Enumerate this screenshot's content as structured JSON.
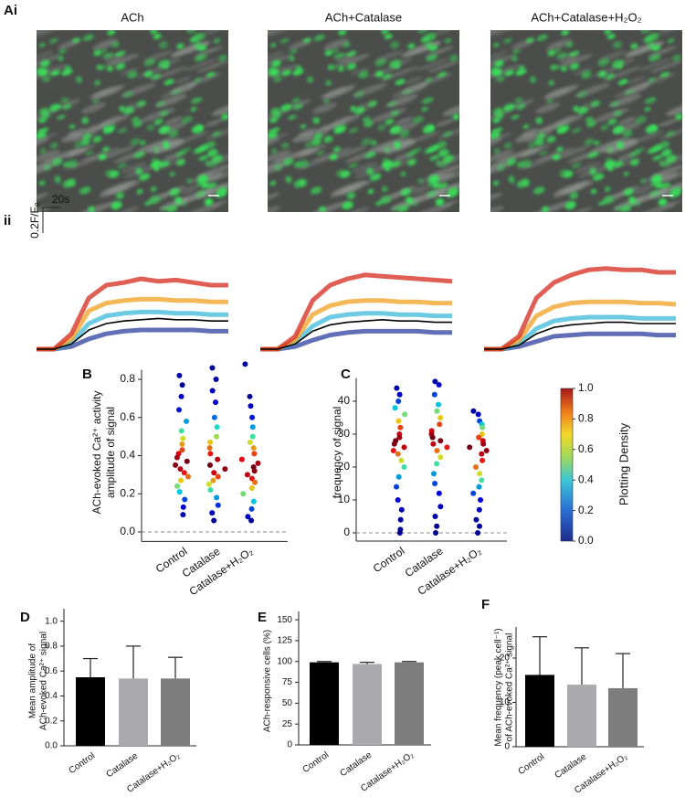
{
  "panel_labels": [
    "Ai",
    "ii"
  ],
  "images": [
    {
      "title": "ACh"
    },
    {
      "title": "ACh+Catalase"
    },
    {
      "title": "ACh+Catalase+H₂O₂"
    }
  ],
  "colorbar": {
    "label": "Plotting Density",
    "lim": [
      0,
      1
    ],
    "ticks": [
      {
        "value": 0,
        "label": "0.0"
      },
      {
        "value": 0.2,
        "label": "0.2"
      },
      {
        "value": 0.4,
        "label": "0.4"
      },
      {
        "value": 0.6,
        "label": "0.6"
      },
      {
        "value": 0.8,
        "label": "0.8"
      },
      {
        "value": 1,
        "label": "1.0"
      }
    ]
  },
  "chart_data": [
    {
      "type": "line",
      "x": [
        0,
        10,
        20,
        30,
        40,
        50,
        60,
        70,
        80,
        90,
        100,
        110
      ],
      "xlim": [
        0,
        110
      ],
      "ylim": [
        0,
        0.8
      ],
      "scalebar": {
        "x_value": 20,
        "x_label": "20s",
        "y_value": 0.2,
        "y_label": "0.2F/F₀"
      },
      "series": [
        {
          "color": "#2b3f9e",
          "values": [
            0,
            0,
            0.02,
            0.08,
            0.12,
            0.14,
            0.15,
            0.15,
            0.15,
            0.15,
            0.14,
            0.14
          ]
        },
        {
          "color": "#3bb8d8",
          "values": [
            0,
            0,
            0.05,
            0.2,
            0.26,
            0.28,
            0.29,
            0.29,
            0.28,
            0.28,
            0.27,
            0.27
          ]
        },
        {
          "color": "#f0a020",
          "values": [
            0,
            0,
            0.08,
            0.3,
            0.36,
            0.38,
            0.39,
            0.39,
            0.38,
            0.38,
            0.37,
            0.37
          ]
        },
        {
          "color": "#d42a1c",
          "values": [
            0,
            0,
            0.12,
            0.4,
            0.5,
            0.52,
            0.55,
            0.53,
            0.54,
            0.52,
            0.5,
            0.5
          ]
        },
        {
          "color": "#000000",
          "values": [
            0,
            0,
            0.04,
            0.15,
            0.2,
            0.22,
            0.23,
            0.24,
            0.23,
            0.23,
            0.22,
            0.22
          ]
        }
      ]
    },
    {
      "type": "line",
      "x": [
        0,
        10,
        20,
        30,
        40,
        50,
        60,
        70,
        80,
        90,
        100,
        110
      ],
      "xlim": [
        0,
        110
      ],
      "ylim": [
        0,
        0.8
      ],
      "series": [
        {
          "color": "#2b3f9e",
          "values": [
            0,
            0,
            0.02,
            0.07,
            0.11,
            0.13,
            0.14,
            0.14,
            0.14,
            0.14,
            0.13,
            0.13
          ]
        },
        {
          "color": "#3bb8d8",
          "values": [
            0,
            0,
            0.05,
            0.18,
            0.25,
            0.27,
            0.28,
            0.28,
            0.27,
            0.27,
            0.26,
            0.26
          ]
        },
        {
          "color": "#f0a020",
          "values": [
            0,
            0,
            0.07,
            0.27,
            0.34,
            0.37,
            0.38,
            0.38,
            0.37,
            0.37,
            0.36,
            0.36
          ]
        },
        {
          "color": "#d42a1c",
          "values": [
            0,
            0,
            0.1,
            0.38,
            0.5,
            0.55,
            0.58,
            0.57,
            0.56,
            0.55,
            0.54,
            0.53
          ]
        },
        {
          "color": "#000000",
          "values": [
            0,
            0,
            0.04,
            0.14,
            0.19,
            0.21,
            0.22,
            0.23,
            0.22,
            0.22,
            0.21,
            0.21
          ]
        }
      ]
    },
    {
      "type": "line",
      "x": [
        0,
        10,
        20,
        30,
        40,
        50,
        60,
        70,
        80,
        90,
        100,
        110
      ],
      "xlim": [
        0,
        110
      ],
      "ylim": [
        0,
        0.8
      ],
      "series": [
        {
          "color": "#2b3f9e",
          "values": [
            0,
            0,
            0.02,
            0.06,
            0.1,
            0.11,
            0.12,
            0.12,
            0.12,
            0.12,
            0.11,
            0.11
          ]
        },
        {
          "color": "#3bb8d8",
          "values": [
            0,
            0,
            0.04,
            0.16,
            0.22,
            0.24,
            0.25,
            0.25,
            0.25,
            0.24,
            0.24,
            0.24
          ]
        },
        {
          "color": "#f0a020",
          "values": [
            0,
            0,
            0.07,
            0.26,
            0.33,
            0.36,
            0.37,
            0.37,
            0.37,
            0.36,
            0.36,
            0.35
          ]
        },
        {
          "color": "#d42a1c",
          "values": [
            0,
            0,
            0.1,
            0.4,
            0.52,
            0.58,
            0.62,
            0.63,
            0.62,
            0.62,
            0.6,
            0.6
          ]
        },
        {
          "color": "#000000",
          "values": [
            0,
            0,
            0.03,
            0.12,
            0.17,
            0.19,
            0.2,
            0.21,
            0.21,
            0.2,
            0.2,
            0.2
          ]
        }
      ]
    },
    {
      "type": "strip",
      "label": "B",
      "ylabel": [
        "ACh-evoked Ca²⁺ activity",
        "amplitude of signal"
      ],
      "categories": [
        "Control",
        "Catalase",
        "Catalase+H₂O₂"
      ],
      "ylim": [
        -0.05,
        0.85
      ],
      "hline": 0,
      "yticks": [
        {
          "value": 0,
          "label": "0.0"
        },
        {
          "value": 0.2,
          "label": "0.2"
        },
        {
          "value": 0.4,
          "label": "0.4"
        },
        {
          "value": 0.6,
          "label": "0.6"
        },
        {
          "value": 0.8,
          "label": "0.8"
        }
      ],
      "groups": [
        {
          "values": [
            0.82,
            0.77,
            0.71,
            0.64,
            0.58,
            0.53,
            0.49,
            0.46,
            0.43,
            0.41,
            0.39,
            0.37,
            0.35,
            0.33,
            0.31,
            0.29,
            0.27,
            0.24,
            0.21,
            0.17,
            0.13,
            0.09
          ],
          "density": [
            0.05,
            0.05,
            0.08,
            0.15,
            0.3,
            0.45,
            0.6,
            0.7,
            0.8,
            0.88,
            0.95,
            1.0,
            0.98,
            0.92,
            0.85,
            0.75,
            0.65,
            0.5,
            0.35,
            0.2,
            0.1,
            0.05
          ]
        },
        {
          "values": [
            0.86,
            0.8,
            0.74,
            0.68,
            0.6,
            0.55,
            0.5,
            0.47,
            0.44,
            0.41,
            0.38,
            0.35,
            0.33,
            0.31,
            0.29,
            0.27,
            0.25,
            0.22,
            0.18,
            0.14,
            0.1,
            0.06
          ],
          "density": [
            0.04,
            0.05,
            0.08,
            0.12,
            0.25,
            0.4,
            0.55,
            0.65,
            0.75,
            0.85,
            0.92,
            1.0,
            0.97,
            0.9,
            0.8,
            0.7,
            0.6,
            0.45,
            0.3,
            0.18,
            0.08,
            0.04
          ]
        },
        {
          "values": [
            0.88,
            0.71,
            0.66,
            0.6,
            0.55,
            0.5,
            0.47,
            0.44,
            0.41,
            0.38,
            0.36,
            0.34,
            0.32,
            0.3,
            0.28,
            0.26,
            0.23,
            0.2,
            0.16,
            0.12,
            0.08,
            0.06
          ],
          "density": [
            0.05,
            0.05,
            0.08,
            0.15,
            0.3,
            0.45,
            0.6,
            0.7,
            0.8,
            0.88,
            0.95,
            1.0,
            0.98,
            0.92,
            0.85,
            0.75,
            0.65,
            0.5,
            0.35,
            0.2,
            0.1,
            0.05
          ]
        }
      ]
    },
    {
      "type": "strip",
      "label": "C",
      "ylabel": [
        "frequency of signal"
      ],
      "categories": [
        "Control",
        "Catalase",
        "Catalase+H₂O₂"
      ],
      "ylim": [
        -2.5,
        47
      ],
      "hline": 0,
      "yticks": [
        0,
        10,
        20,
        30,
        40
      ],
      "groups": [
        {
          "values": [
            44,
            42,
            40,
            38,
            36,
            34,
            32,
            30,
            29,
            28,
            27,
            26,
            25,
            24,
            22,
            20,
            17,
            14,
            10,
            7,
            4,
            1,
            0
          ],
          "density": [
            0.05,
            0.1,
            0.2,
            0.35,
            0.5,
            0.65,
            0.8,
            0.9,
            0.95,
            1.0,
            0.98,
            0.92,
            0.85,
            0.75,
            0.6,
            0.45,
            0.3,
            0.2,
            0.12,
            0.08,
            0.05,
            0.04,
            0.03
          ]
        },
        {
          "values": [
            46,
            45,
            42,
            39,
            37,
            35,
            33,
            31,
            30,
            29,
            28,
            27,
            26,
            25,
            23,
            21,
            18,
            15,
            12,
            8,
            5,
            2,
            0
          ],
          "density": [
            0.05,
            0.1,
            0.2,
            0.35,
            0.5,
            0.65,
            0.8,
            0.9,
            0.95,
            1.0,
            0.98,
            0.92,
            0.85,
            0.75,
            0.6,
            0.45,
            0.3,
            0.2,
            0.12,
            0.08,
            0.05,
            0.04,
            0.03
          ]
        },
        {
          "values": [
            37,
            36,
            34,
            33,
            32,
            30,
            29,
            28,
            27,
            26,
            25,
            24,
            22,
            20,
            18,
            16,
            14,
            12,
            10,
            7,
            4,
            2,
            0
          ],
          "density": [
            0.05,
            0.1,
            0.2,
            0.35,
            0.5,
            0.65,
            0.8,
            0.9,
            0.95,
            1.0,
            0.98,
            0.92,
            0.85,
            0.75,
            0.6,
            0.45,
            0.3,
            0.2,
            0.12,
            0.08,
            0.05,
            0.04,
            0.03
          ]
        }
      ]
    },
    {
      "type": "bar",
      "label": "D",
      "ylabel": [
        "Mean amplitude of",
        "ACh-evoked Ca²⁺ signal"
      ],
      "categories": [
        "Control",
        "Catalase",
        "Catalase+H₂O₂"
      ],
      "colors": [
        "#000000",
        "#a9a9ae",
        "#7d7d7d"
      ],
      "values": [
        0.55,
        0.54,
        0.54
      ],
      "errors": [
        0.15,
        0.26,
        0.17
      ],
      "ylim": [
        0,
        1.1
      ],
      "yticks": [
        {
          "value": 0,
          "label": "0.0"
        },
        {
          "value": 0.2,
          "label": "0.2"
        },
        {
          "value": 0.4,
          "label": "0.4"
        },
        {
          "value": 0.6,
          "label": "0.6"
        },
        {
          "value": 0.8,
          "label": "0.8"
        },
        {
          "value": 1,
          "label": "1.0"
        }
      ]
    },
    {
      "type": "bar",
      "label": "E",
      "ylabel": [
        "ACh-responsive cells (%)"
      ],
      "categories": [
        "Control",
        "Catalase",
        "Catalase+H₂O₂"
      ],
      "colors": [
        "#000000",
        "#a9a9ae",
        "#7d7d7d"
      ],
      "values": [
        99,
        97,
        99
      ],
      "errors": [
        1,
        2,
        1
      ],
      "ylim": [
        0,
        160
      ],
      "yticks": [
        0,
        25,
        50,
        75,
        100,
        125,
        150
      ]
    },
    {
      "type": "bar",
      "label": "F",
      "ylabel": [
        "Mean frequency (peak cell⁻¹)",
        "of ACh-evoked Ca²⁺ signal"
      ],
      "categories": [
        "Control",
        "Catalase",
        "Catalase+H₂O₂"
      ],
      "colors": [
        "#000000",
        "#a9a9ae",
        "#7d7d7d"
      ],
      "values": [
        16.2,
        14.0,
        13.2
      ],
      "errors": [
        8.6,
        8.3,
        7.8
      ],
      "ylim": [
        0,
        27
      ],
      "yticks": [
        0,
        10,
        20
      ]
    }
  ]
}
